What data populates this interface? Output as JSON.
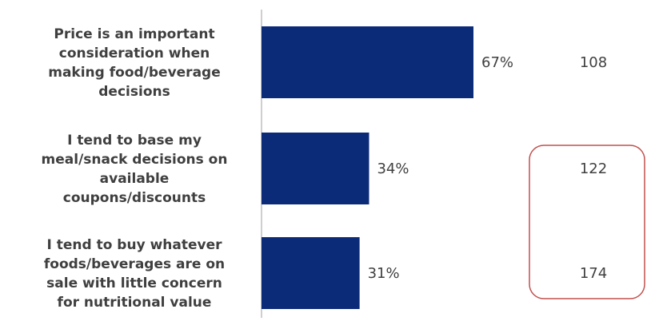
{
  "chart_data": {
    "type": "bar",
    "orientation": "horizontal",
    "categories": [
      "Price is an important consideration when making food/beverage decisions",
      "I tend to base my meal/snack decisions on available coupons/discounts",
      "I tend to buy whatever foods/beverages are on sale with little concern for nutritional value"
    ],
    "category_lines": [
      [
        "Price is an important",
        "consideration when",
        "making food/beverage",
        "decisions"
      ],
      [
        "I tend to base my",
        "meal/snack decisions on",
        "available",
        "coupons/discounts"
      ],
      [
        "I tend to buy whatever",
        "foods/beverages are on",
        "sale with little concern",
        "for nutritional value"
      ]
    ],
    "values": [
      67,
      34,
      31
    ],
    "value_labels": [
      "67%",
      "34%",
      "31%"
    ],
    "index_values": [
      "108",
      "122",
      "174"
    ],
    "highlighted_indices": [
      1,
      2
    ],
    "xlim": [
      0,
      100
    ],
    "colors": {
      "bar": "#0b2a78",
      "axis": "#bfbfbf",
      "highlight_box": "#c0504d"
    },
    "title": "",
    "xlabel": "",
    "ylabel": ""
  }
}
